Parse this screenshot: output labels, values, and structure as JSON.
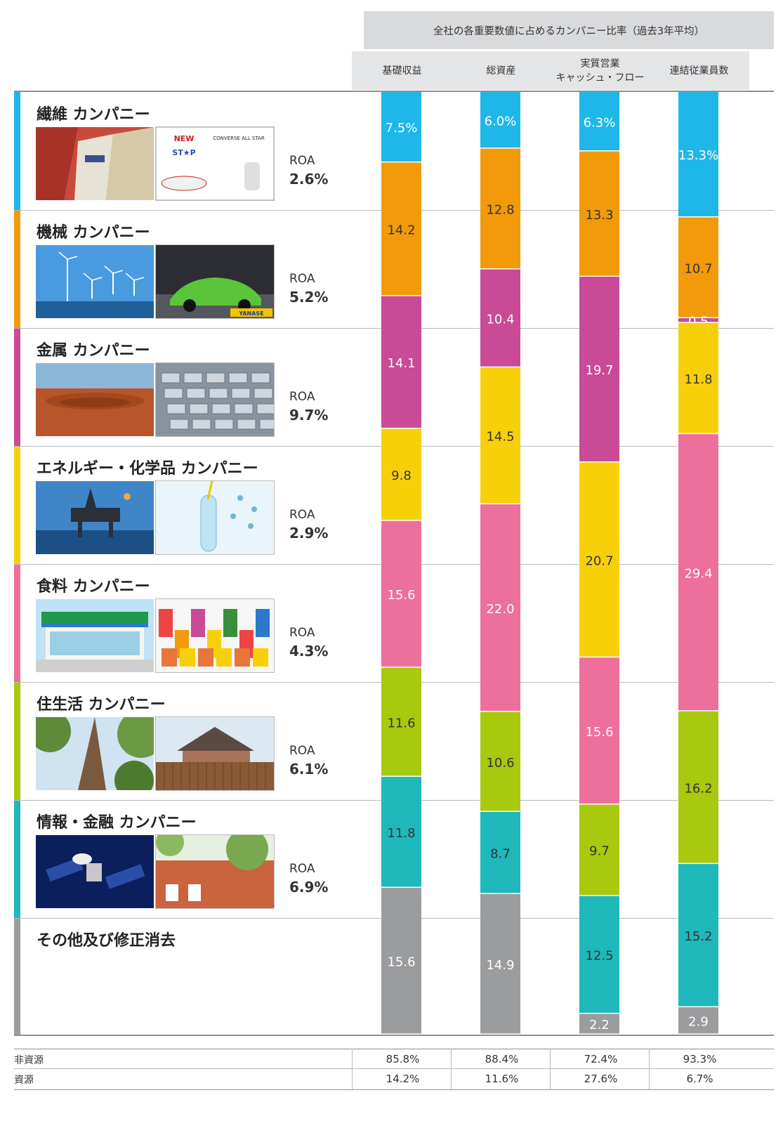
{
  "header": {
    "title": "全社の各重要数値に占めるカンパニー比率（過去3年平均）",
    "columns": [
      "基礎収益",
      "総資産",
      "実質営業\nキャッシュ・フロー",
      "連結従業員数"
    ]
  },
  "segments": [
    {
      "name": "繊維 カンパニー",
      "color": "#1fb7ea",
      "roa_label": "ROA",
      "roa": "2.6%",
      "photos": [
        "textile-shopping-bags-photo",
        "converse-all-star-ad-photo"
      ]
    },
    {
      "name": "機械 カンパニー",
      "color": "#f29a0a",
      "roa_label": "ROA",
      "roa": "5.2%",
      "photos": [
        "offshore-wind-turbines-photo",
        "green-sports-car-photo"
      ],
      "photo_text": [
        "",
        "YANASE"
      ]
    },
    {
      "name": "金属 カンパニー",
      "color": "#c94a97",
      "roa_label": "ROA",
      "roa": "9.7%",
      "photos": [
        "open-pit-mine-photo",
        "aluminum-ingots-photo"
      ]
    },
    {
      "name": "エネルギー・化学品 カンパニー",
      "color": "#f8d00a",
      "roa_label": "ROA",
      "roa": "2.9%",
      "photos": [
        "oil-platform-photo",
        "test-tube-chemistry-photo"
      ]
    },
    {
      "name": "食料 カンパニー",
      "color": "#ec6f9c",
      "roa_label": "ROA",
      "roa": "4.3%",
      "photos": [
        "convenience-store-photo",
        "dole-food-products-photo"
      ]
    },
    {
      "name": "住生活 カンパニー",
      "color": "#a8c90e",
      "roa_label": "ROA",
      "roa": "6.1%",
      "photos": [
        "forest-trees-photo",
        "house-with-fence-photo"
      ]
    },
    {
      "name": "情報・金融 カンパニー",
      "color": "#1fb8bb",
      "roa_label": "ROA",
      "roa": "6.9%",
      "photos": [
        "satellite-in-orbit-photo",
        "first-response-building-photo"
      ]
    },
    {
      "name": "その他及び修正消去",
      "color": "#9b9c9e",
      "roa_label": "",
      "roa": "",
      "photos": []
    }
  ],
  "chart_data": {
    "type": "bar",
    "stacked": true,
    "unit": "%",
    "categories": [
      "基礎収益",
      "総資産",
      "実質営業\nキャッシュ・フロー",
      "連結従業員数"
    ],
    "series": [
      {
        "name": "繊維 カンパニー",
        "values": [
          7.5,
          6.0,
          6.3,
          13.3
        ],
        "labels": [
          "7.5%",
          "6.0%",
          "6.3%",
          "13.3%"
        ],
        "label_color": "#ffffff"
      },
      {
        "name": "機械 カンパニー",
        "values": [
          14.2,
          12.8,
          13.3,
          10.7
        ],
        "labels": [
          "14.2",
          "12.8",
          "13.3",
          "10.7"
        ],
        "label_color": "#333333"
      },
      {
        "name": "金属 カンパニー",
        "values": [
          14.1,
          10.4,
          19.7,
          0.5
        ],
        "labels": [
          "14.1",
          "10.4",
          "19.7",
          "0.5"
        ],
        "label_color": "#ffffff"
      },
      {
        "name": "エネルギー・化学品 カンパニー",
        "values": [
          9.8,
          14.5,
          20.7,
          11.8
        ],
        "labels": [
          "9.8",
          "14.5",
          "20.7",
          "11.8"
        ],
        "label_color": "#333333"
      },
      {
        "name": "食料 カンパニー",
        "values": [
          15.6,
          22.0,
          15.6,
          29.4
        ],
        "labels": [
          "15.6",
          "22.0",
          "15.6",
          "29.4"
        ],
        "label_color": "#ffffff"
      },
      {
        "name": "住生活 カンパニー",
        "values": [
          11.6,
          10.6,
          9.7,
          16.2
        ],
        "labels": [
          "11.6",
          "10.6",
          "9.7",
          "16.2"
        ],
        "label_color": "#333333"
      },
      {
        "name": "情報・金融 カンパニー",
        "values": [
          11.8,
          8.7,
          12.5,
          15.2
        ],
        "labels": [
          "11.8",
          "8.7",
          "12.5",
          "15.2"
        ],
        "label_color": "#333333"
      },
      {
        "name": "その他及び修正消去",
        "values": [
          15.6,
          14.9,
          2.2,
          2.9
        ],
        "labels": [
          "15.6",
          "14.9",
          "2.2",
          "2.9"
        ],
        "label_color": "#ffffff"
      }
    ],
    "ylim": [
      0,
      100
    ]
  },
  "table": {
    "rows": [
      {
        "label": "非資源",
        "values": [
          "85.8%",
          "88.4%",
          "72.4%",
          "93.3%"
        ]
      },
      {
        "label": "資源",
        "values": [
          "14.2%",
          "11.6%",
          "27.6%",
          "6.7%"
        ]
      }
    ]
  }
}
